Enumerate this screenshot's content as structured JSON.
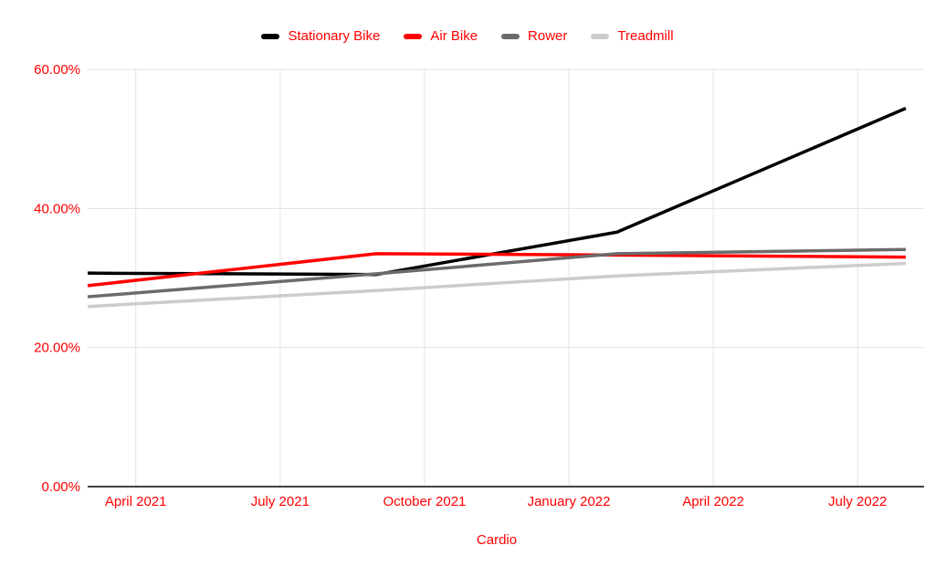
{
  "chart_data": {
    "type": "line",
    "title": "",
    "xlabel": "Cardio",
    "ylabel": "",
    "ylim": [
      0,
      60
    ],
    "grid": true,
    "legend_position": "top",
    "background_color": "#ffffff",
    "text_color": "#ff0000",
    "gridline_color": "#e3e3e3",
    "axis_line_color": "#424242",
    "x_domain_months": [
      0,
      17
    ],
    "x_ticks": [
      {
        "label": "April 2021",
        "month": 1
      },
      {
        "label": "July 2021",
        "month": 4
      },
      {
        "label": "October 2021",
        "month": 7
      },
      {
        "label": "January 2022",
        "month": 10
      },
      {
        "label": "April 2022",
        "month": 13
      },
      {
        "label": "July 2022",
        "month": 16
      }
    ],
    "y_ticks": [
      {
        "label": "0.00%",
        "value": 0
      },
      {
        "label": "20.00%",
        "value": 20
      },
      {
        "label": "40.00%",
        "value": 40
      },
      {
        "label": "60.00%",
        "value": 60
      }
    ],
    "series": [
      {
        "name": "Stationary Bike",
        "color": "#000000",
        "points": [
          {
            "month": 0,
            "x_est": "Mar 2021",
            "value": 30.7
          },
          {
            "month": 6,
            "x_est": "Sep 2021",
            "value": 30.5
          },
          {
            "month": 11,
            "x_est": "Feb 2022",
            "value": 36.6
          },
          {
            "month": 17,
            "x_est": "Aug 2022",
            "value": 54.4
          }
        ]
      },
      {
        "name": "Air Bike",
        "color": "#ff0000",
        "points": [
          {
            "month": 0,
            "x_est": "Mar 2021",
            "value": 28.9
          },
          {
            "month": 6,
            "x_est": "Sep 2021",
            "value": 33.5
          },
          {
            "month": 11,
            "x_est": "Feb 2022",
            "value": 33.3
          },
          {
            "month": 17,
            "x_est": "Aug 2022",
            "value": 33.0
          }
        ]
      },
      {
        "name": "Rower",
        "color": "#6b6b6b",
        "points": [
          {
            "month": 0,
            "x_est": "Mar 2021",
            "value": 27.3
          },
          {
            "month": 6,
            "x_est": "Sep 2021",
            "value": 30.6
          },
          {
            "month": 11,
            "x_est": "Feb 2022",
            "value": 33.5
          },
          {
            "month": 17,
            "x_est": "Aug 2022",
            "value": 34.1
          }
        ]
      },
      {
        "name": "Treadmill",
        "color": "#cccccc",
        "points": [
          {
            "month": 0,
            "x_est": "Mar 2021",
            "value": 25.9
          },
          {
            "month": 6,
            "x_est": "Sep 2021",
            "value": 28.2
          },
          {
            "month": 11,
            "x_est": "Feb 2022",
            "value": 30.3
          },
          {
            "month": 17,
            "x_est": "Aug 2022",
            "value": 32.1
          }
        ]
      }
    ]
  }
}
